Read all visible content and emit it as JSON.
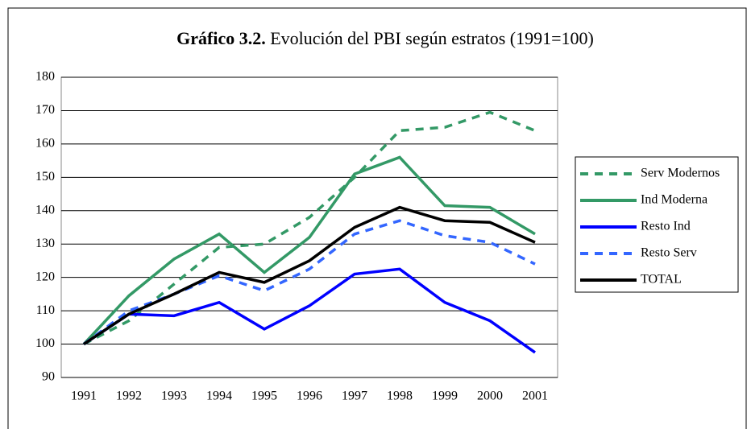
{
  "chart_data": {
    "type": "line",
    "title_label": "Gráfico 3.2.",
    "title": "Evolución del PBI según estratos (1991=100)",
    "categories": [
      "1991",
      "1992",
      "1993",
      "1994",
      "1995",
      "1996",
      "1997",
      "1998",
      "1999",
      "2000",
      "2001"
    ],
    "series": [
      {
        "name": "Serv Modernos",
        "color": "#339966",
        "dashed": true,
        "values": [
          100,
          107,
          118,
          129,
          130,
          138,
          150,
          164,
          165,
          169.5,
          164
        ]
      },
      {
        "name": "Ind Moderna",
        "color": "#339966",
        "dashed": false,
        "values": [
          100,
          114.5,
          125.5,
          133,
          121.5,
          132,
          151,
          156,
          141.5,
          141,
          133
        ]
      },
      {
        "name": "Resto Ind",
        "color": "#0000ff",
        "dashed": false,
        "values": [
          100,
          109,
          108.5,
          112.5,
          104.5,
          111.5,
          121,
          122.5,
          112.5,
          107,
          97.5
        ]
      },
      {
        "name": "Resto Serv",
        "color": "#3366ff",
        "dashed": true,
        "values": [
          100,
          110,
          115,
          120.5,
          116,
          122.5,
          133,
          137,
          132.5,
          130.5,
          124
        ]
      },
      {
        "name": "TOTAL",
        "color": "#000000",
        "dashed": false,
        "values": [
          100,
          109,
          115,
          121.5,
          118.5,
          125,
          135,
          141,
          137,
          136.5,
          130.5
        ]
      }
    ],
    "ylim": [
      90,
      180
    ],
    "yticks": [
      90,
      100,
      110,
      120,
      130,
      140,
      150,
      160,
      170,
      180
    ],
    "grid": true,
    "legend": "right"
  }
}
